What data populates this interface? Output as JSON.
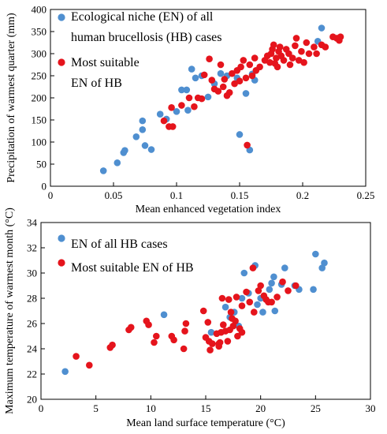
{
  "colors": {
    "blue": "#4f8fd0",
    "red": "#e5141c"
  },
  "chart_data": [
    {
      "type": "scatter",
      "xlabel": "Mean enhanced vegetation index",
      "ylabel": "Precipitation of warmest quarter (mm)",
      "xlim": [
        0,
        0.25
      ],
      "ylim": [
        0,
        400
      ],
      "xticks": [
        "0",
        "0.05",
        "0.1",
        "0.15",
        "0.2",
        "0.25"
      ],
      "yticks": [
        "0",
        "50",
        "100",
        "150",
        "200",
        "250",
        "300",
        "350",
        "400"
      ],
      "legend": {
        "placement": "top-left"
      },
      "series": [
        {
          "name": "Ecological niche (EN) of all human brucellosis (HB) cases",
          "legend_lines": [
            "Ecological niche (EN) of all",
            "human brucellosis (HB) cases"
          ],
          "color": "blue",
          "points": [
            [
              0.042,
              35
            ],
            [
              0.053,
              53
            ],
            [
              0.058,
              76
            ],
            [
              0.059,
              81
            ],
            [
              0.068,
              112
            ],
            [
              0.073,
              128
            ],
            [
              0.073,
              148
            ],
            [
              0.075,
              92
            ],
            [
              0.08,
              83
            ],
            [
              0.087,
              163
            ],
            [
              0.092,
              152
            ],
            [
              0.1,
              169
            ],
            [
              0.104,
              218
            ],
            [
              0.108,
              218
            ],
            [
              0.109,
              172
            ],
            [
              0.112,
              265
            ],
            [
              0.115,
              245
            ],
            [
              0.12,
              250
            ],
            [
              0.125,
              202
            ],
            [
              0.13,
              232
            ],
            [
              0.135,
              255
            ],
            [
              0.14,
              250
            ],
            [
              0.148,
              245
            ],
            [
              0.15,
              117
            ],
            [
              0.155,
              210
            ],
            [
              0.158,
              82
            ],
            [
              0.16,
              254
            ],
            [
              0.162,
              240
            ],
            [
              0.212,
              328
            ],
            [
              0.215,
              358
            ]
          ]
        },
        {
          "name": "Most suitable EN of HB",
          "legend_lines": [
            "Most suitable",
            "EN of HB"
          ],
          "color": "red",
          "points": [
            [
              0.09,
              148
            ],
            [
              0.094,
              135
            ],
            [
              0.097,
              135
            ],
            [
              0.096,
              178
            ],
            [
              0.104,
              183
            ],
            [
              0.11,
              200
            ],
            [
              0.114,
              180
            ],
            [
              0.117,
              200
            ],
            [
              0.12,
              198
            ],
            [
              0.122,
              252
            ],
            [
              0.126,
              288
            ],
            [
              0.128,
              240
            ],
            [
              0.13,
              220
            ],
            [
              0.133,
              215
            ],
            [
              0.135,
              275
            ],
            [
              0.137,
              225
            ],
            [
              0.138,
              242
            ],
            [
              0.14,
              205
            ],
            [
              0.142,
              212
            ],
            [
              0.144,
              255
            ],
            [
              0.146,
              232
            ],
            [
              0.148,
              262
            ],
            [
              0.15,
              238
            ],
            [
              0.151,
              270
            ],
            [
              0.153,
              285
            ],
            [
              0.155,
              245
            ],
            [
              0.156,
              93
            ],
            [
              0.158,
              275
            ],
            [
              0.16,
              250
            ],
            [
              0.162,
              290
            ],
            [
              0.163,
              262
            ],
            [
              0.166,
              270
            ],
            [
              0.17,
              285
            ],
            [
              0.172,
              295
            ],
            [
              0.174,
              280
            ],
            [
              0.175,
              300
            ],
            [
              0.176,
              310
            ],
            [
              0.177,
              320
            ],
            [
              0.178,
              278
            ],
            [
              0.179,
              290
            ],
            [
              0.18,
              270
            ],
            [
              0.181,
              305
            ],
            [
              0.182,
              315
            ],
            [
              0.183,
              295
            ],
            [
              0.185,
              285
            ],
            [
              0.187,
              310
            ],
            [
              0.189,
              300
            ],
            [
              0.19,
              275
            ],
            [
              0.192,
              290
            ],
            [
              0.194,
              318
            ],
            [
              0.195,
              335
            ],
            [
              0.197,
              285
            ],
            [
              0.199,
              305
            ],
            [
              0.201,
              280
            ],
            [
              0.203,
              325
            ],
            [
              0.205,
              300
            ],
            [
              0.209,
              315
            ],
            [
              0.211,
              300
            ],
            [
              0.215,
              320
            ],
            [
              0.218,
              315
            ],
            [
              0.224,
              338
            ],
            [
              0.227,
              335
            ],
            [
              0.229,
              330
            ],
            [
              0.23,
              338
            ]
          ]
        }
      ]
    },
    {
      "type": "scatter",
      "xlabel": "Mean land surface temperature (°C)",
      "ylabel": "Maximum temperature of warmest month (°C)",
      "xlim": [
        0,
        30
      ],
      "ylim": [
        20,
        34
      ],
      "xticks": [
        "0",
        "5",
        "10",
        "15",
        "20",
        "25",
        "30"
      ],
      "yticks": [
        "20",
        "22",
        "24",
        "26",
        "28",
        "30",
        "32",
        "34"
      ],
      "legend": {
        "placement": "top-left"
      },
      "series": [
        {
          "name": "EN of all HB cases",
          "legend_lines": [
            "EN of all HB cases"
          ],
          "color": "blue",
          "points": [
            [
              2.2,
              22.2
            ],
            [
              11.2,
              26.7
            ],
            [
              15.5,
              25.3
            ],
            [
              16.8,
              27.3
            ],
            [
              17.2,
              26.5
            ],
            [
              17.6,
              26.9
            ],
            [
              18.0,
              25.8
            ],
            [
              18.3,
              28.0
            ],
            [
              18.5,
              30.0
            ],
            [
              18.9,
              28.4
            ],
            [
              19.5,
              30.6
            ],
            [
              19.7,
              27.5
            ],
            [
              20.0,
              28.0
            ],
            [
              20.2,
              26.9
            ],
            [
              20.8,
              28.7
            ],
            [
              21.0,
              29.2
            ],
            [
              21.2,
              29.7
            ],
            [
              21.3,
              27.0
            ],
            [
              21.9,
              29.1
            ],
            [
              22.2,
              30.4
            ],
            [
              23.1,
              29.0
            ],
            [
              23.5,
              28.7
            ],
            [
              24.8,
              28.7
            ],
            [
              25.0,
              31.5
            ],
            [
              25.6,
              30.4
            ],
            [
              25.8,
              30.8
            ]
          ]
        },
        {
          "name": "Most suitable EN of HB",
          "legend_lines": [
            "Most suitable EN of HB"
          ],
          "color": "red",
          "points": [
            [
              3.2,
              23.4
            ],
            [
              4.4,
              22.7
            ],
            [
              6.3,
              24.1
            ],
            [
              6.5,
              24.3
            ],
            [
              8.0,
              25.5
            ],
            [
              8.2,
              25.7
            ],
            [
              9.6,
              26.2
            ],
            [
              9.8,
              25.9
            ],
            [
              10.3,
              24.5
            ],
            [
              10.5,
              25.0
            ],
            [
              11.9,
              25.0
            ],
            [
              12.1,
              24.7
            ],
            [
              13.0,
              24.0
            ],
            [
              13.1,
              25.4
            ],
            [
              13.2,
              26.0
            ],
            [
              14.8,
              27.0
            ],
            [
              15.0,
              24.9
            ],
            [
              15.2,
              26.1
            ],
            [
              15.3,
              24.6
            ],
            [
              15.4,
              23.9
            ],
            [
              15.6,
              24.4
            ],
            [
              16.0,
              25.2
            ],
            [
              16.2,
              24.4
            ],
            [
              16.3,
              24.5
            ],
            [
              16.4,
              25.3
            ],
            [
              16.6,
              25.9
            ],
            [
              16.8,
              25.4
            ],
            [
              17.0,
              24.6
            ],
            [
              17.2,
              25.5
            ],
            [
              17.3,
              26.9
            ],
            [
              17.4,
              26.4
            ],
            [
              17.5,
              25.8
            ],
            [
              17.7,
              26.2
            ],
            [
              17.9,
              25.0
            ],
            [
              18.1,
              25.6
            ],
            [
              18.3,
              25.3
            ],
            [
              16.5,
              28.0
            ],
            [
              17.1,
              27.9
            ],
            [
              17.8,
              28.1
            ],
            [
              18.3,
              27.4
            ],
            [
              18.7,
              28.5
            ],
            [
              19.0,
              27.7
            ],
            [
              19.3,
              30.4
            ],
            [
              19.4,
              26.9
            ],
            [
              19.8,
              28.6
            ],
            [
              20.0,
              29.0
            ],
            [
              20.3,
              28.2
            ],
            [
              20.5,
              27.9
            ],
            [
              20.7,
              27.7
            ],
            [
              21.0,
              27.7
            ],
            [
              21.5,
              28.1
            ],
            [
              22.0,
              29.3
            ],
            [
              22.5,
              28.6
            ],
            [
              23.2,
              29.0
            ],
            [
              16.2,
              24.2
            ]
          ]
        }
      ]
    }
  ]
}
